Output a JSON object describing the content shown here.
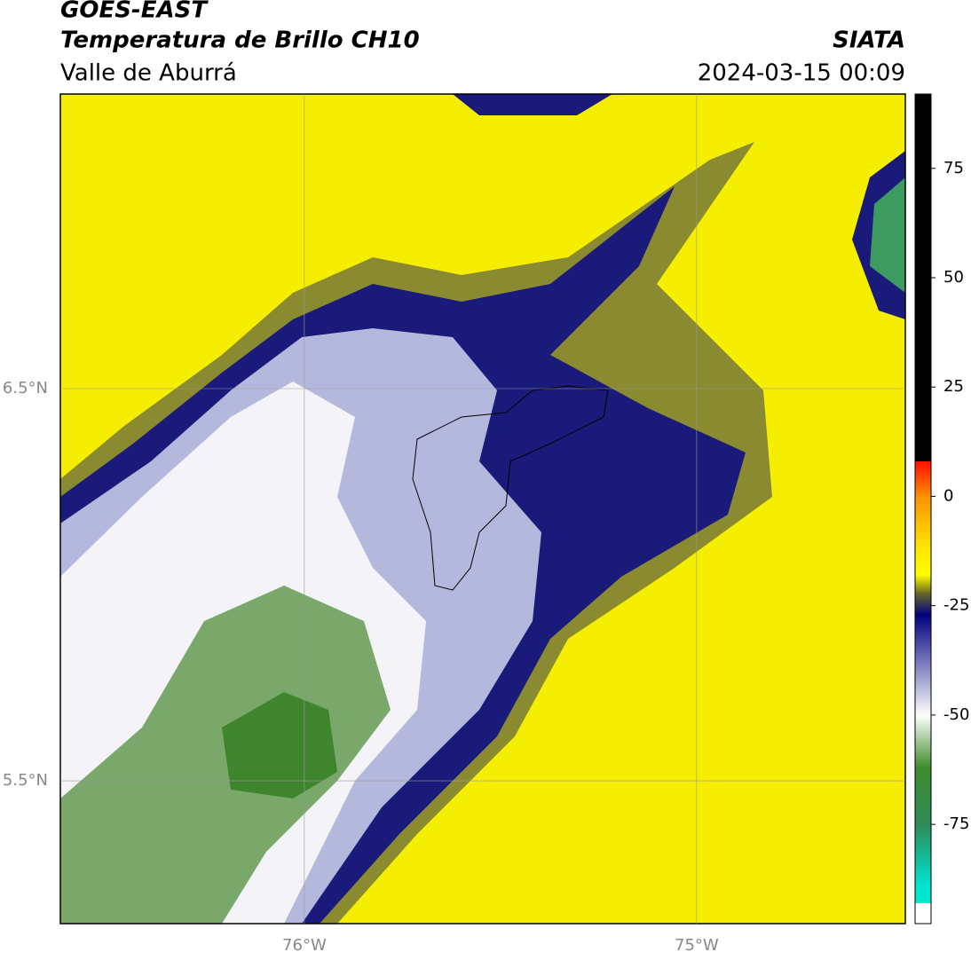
{
  "map": {
    "title": "GOES-EAST",
    "subtitle": "Temperatura de Brillo CH10",
    "region": "Valle de Aburrá",
    "source": "SIATA",
    "datetime": "2024-03-15 00:09",
    "xlim": [
      -76.622,
      -74.468
    ],
    "ylim": [
      5.136,
      7.251
    ],
    "xticks": [
      {
        "value": -76,
        "label": "76°W"
      },
      {
        "value": -75,
        "label": "75°W"
      }
    ],
    "yticks": [
      {
        "value": 6.5,
        "label": "6.5°N"
      },
      {
        "value": 5.5,
        "label": "5.5°N"
      }
    ],
    "grid": true,
    "colorbar": {
      "clim": [
        -97.7,
        92
      ],
      "ticks": [
        75,
        50,
        25,
        0,
        -25,
        -50,
        -75
      ],
      "stops": [
        {
          "value": 92,
          "color": "#000000"
        },
        {
          "value": 8,
          "color": "#000000"
        },
        {
          "value": 8,
          "color": "#ff1000"
        },
        {
          "value": 0,
          "color": "#ff9000"
        },
        {
          "value": -12,
          "color": "#ffe800"
        },
        {
          "value": -18,
          "color": "#ffff00"
        },
        {
          "value": -22,
          "color": "#6b6b20"
        },
        {
          "value": -27,
          "color": "#00007f"
        },
        {
          "value": -50,
          "color": "#ffffff"
        },
        {
          "value": -62,
          "color": "#3d8b2c"
        },
        {
          "value": -75,
          "color": "#2e8b57"
        },
        {
          "value": -89,
          "color": "#00e5d0"
        },
        {
          "value": -93,
          "color": "#00e5d0"
        },
        {
          "value": -93,
          "color": "#ffffff"
        },
        {
          "value": -97.7,
          "color": "#ffffff"
        }
      ]
    }
  }
}
